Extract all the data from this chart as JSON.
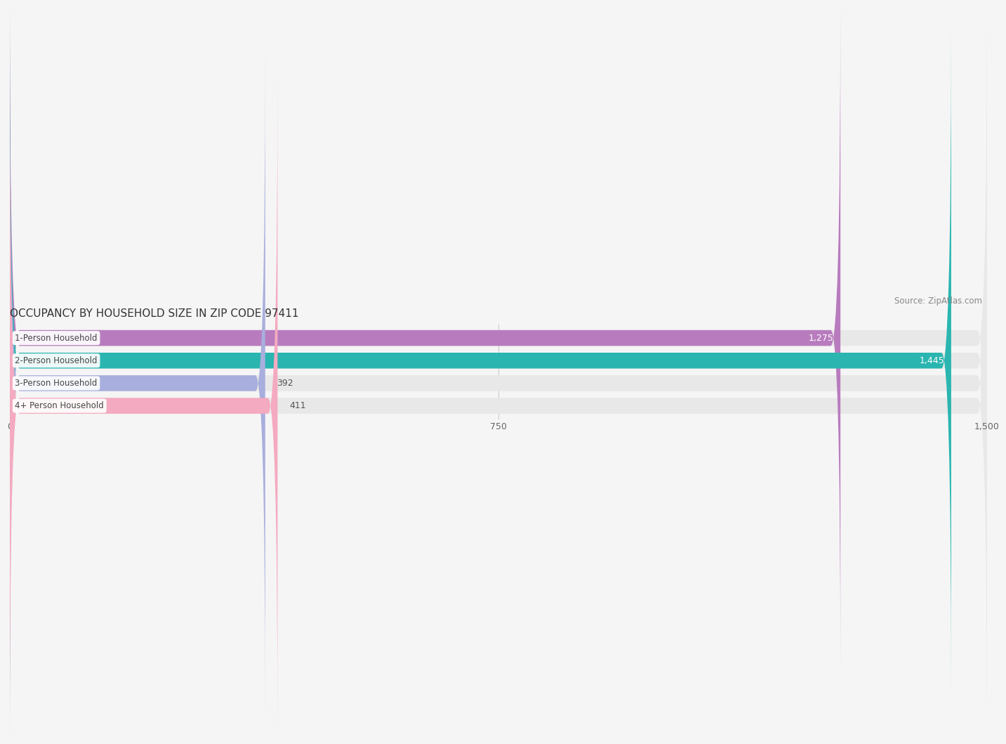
{
  "title": "OCCUPANCY BY HOUSEHOLD SIZE IN ZIP CODE 97411",
  "source": "Source: ZipAtlas.com",
  "categories": [
    "1-Person Household",
    "2-Person Household",
    "3-Person Household",
    "4+ Person Household"
  ],
  "values": [
    1275,
    1445,
    392,
    411
  ],
  "bar_colors": [
    "#b87cbe",
    "#2ab5b0",
    "#a8aedd",
    "#f4aac0"
  ],
  "bar_bg_color": "#e8e8e8",
  "xlim": [
    0,
    1500
  ],
  "xticks": [
    0,
    750,
    1500
  ],
  "label_colors": [
    "white",
    "white",
    "dark",
    "dark"
  ],
  "title_fontsize": 11,
  "source_fontsize": 8.5,
  "tick_fontsize": 9,
  "bar_label_fontsize": 9,
  "category_fontsize": 8.5,
  "background_color": "#f5f5f5"
}
